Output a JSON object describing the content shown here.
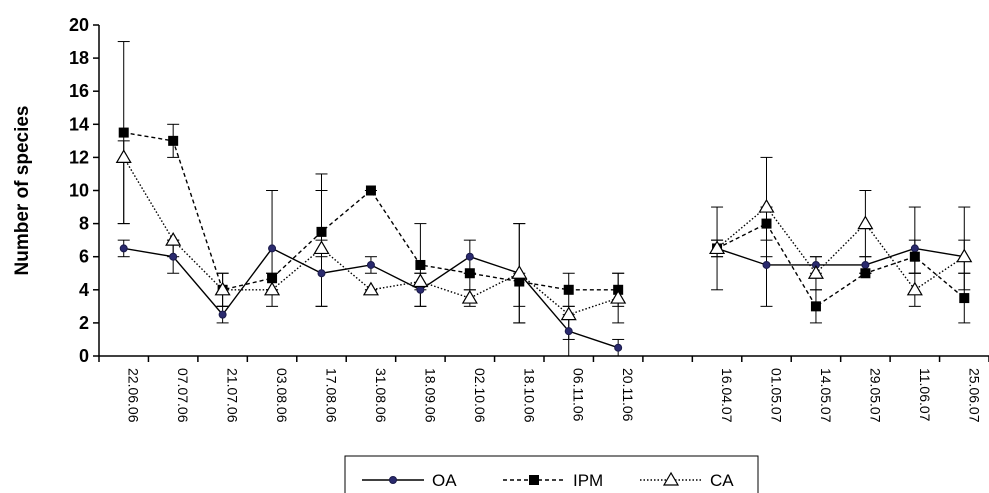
{
  "chart_data": {
    "type": "line",
    "title": "",
    "xlabel": "",
    "ylabel": "Number of species",
    "ylim": [
      0,
      20
    ],
    "yticks": [
      "0",
      "2",
      "4",
      "6",
      "8",
      "10",
      "12",
      "14",
      "16",
      "18",
      "20"
    ],
    "grid": false,
    "legend_position": "bottom",
    "categories": [
      "22.06.06",
      "07.07.06",
      "21.07.06",
      "03.08.06",
      "17.08.06",
      "31.08.06",
      "18.09.06",
      "02.10.06",
      "18.10.06",
      "06.11.06",
      "20.11.06",
      "",
      "16.04.07",
      "01.05.07",
      "14.05.07",
      "29.05.07",
      "11.06.07",
      "25.06.07"
    ],
    "series": [
      {
        "name": "OA",
        "line_style": "solid",
        "marker": "circle",
        "values": [
          6.5,
          6,
          2.5,
          6.5,
          5,
          5.5,
          4,
          6,
          5,
          1.5,
          0.5,
          null,
          6.5,
          5.5,
          5.5,
          5.5,
          6.5,
          6
        ],
        "err_low": [
          6,
          5,
          2,
          4,
          3,
          5,
          3,
          5,
          2,
          0,
          0,
          null,
          4,
          3,
          5,
          5,
          5,
          5
        ],
        "err_high": [
          7,
          7,
          3,
          10,
          11,
          6,
          5,
          7,
          8,
          2.5,
          1,
          null,
          9,
          9,
          6,
          6,
          9,
          7
        ]
      },
      {
        "name": "IPM",
        "line_style": "dashed",
        "marker": "square",
        "values": [
          13.5,
          13,
          4,
          4.7,
          7.5,
          10,
          5.5,
          5,
          4.5,
          4,
          4,
          null,
          6.5,
          8,
          3,
          5,
          6,
          3.5
        ],
        "err_low": [
          8,
          12,
          3,
          4,
          6,
          10,
          3,
          4,
          3,
          3,
          3,
          null,
          6,
          7,
          2,
          5,
          5,
          2
        ],
        "err_high": [
          19,
          14,
          5,
          5,
          10,
          10,
          8,
          5,
          5,
          5,
          5,
          null,
          7,
          9,
          4,
          5,
          7,
          5
        ]
      },
      {
        "name": "CA",
        "line_style": "dotted",
        "marker": "triangle-open",
        "values": [
          12,
          7,
          4,
          4,
          6.5,
          4,
          4.5,
          3.5,
          5,
          2.5,
          3.5,
          null,
          6.5,
          9,
          5,
          8,
          4,
          6
        ],
        "err_low": [
          8,
          6,
          3,
          3,
          3,
          4,
          4,
          3,
          2,
          1,
          2,
          null,
          6,
          6,
          4,
          6,
          3,
          4
        ],
        "err_high": [
          13,
          7,
          5,
          5,
          7,
          4,
          5,
          4,
          8,
          3,
          5,
          null,
          7,
          12,
          6,
          10,
          5,
          9
        ]
      }
    ]
  }
}
